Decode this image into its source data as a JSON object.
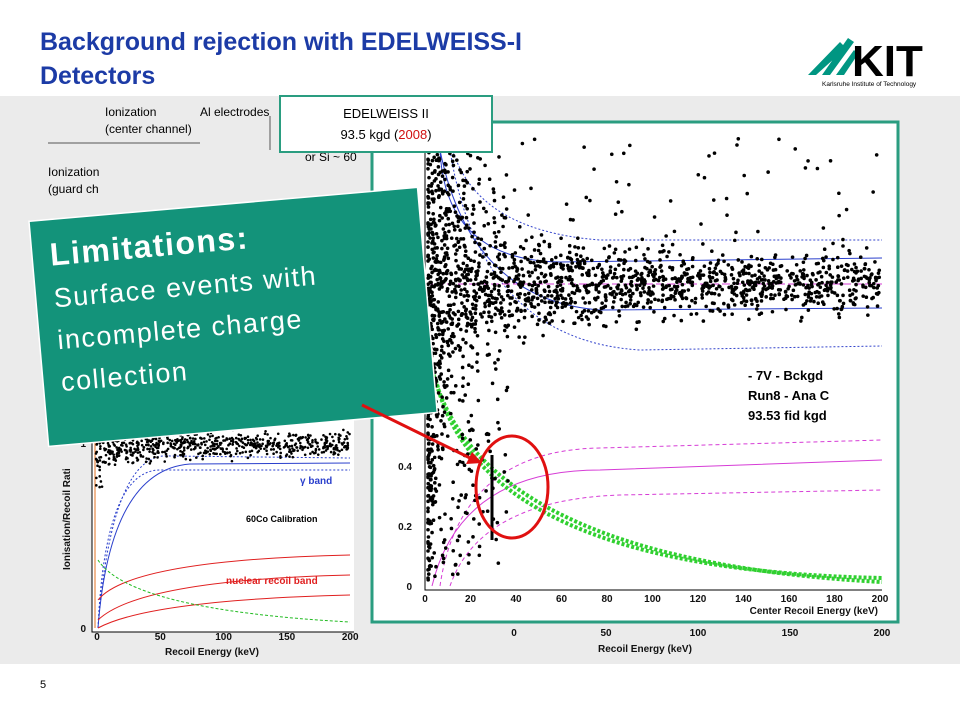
{
  "header": {
    "title_line1": "Background rejection with EDELWEISS-I",
    "title_line2": "Detectors",
    "logo": "KIT",
    "logo_subtitle": "Karlsruhe Institute of Technology"
  },
  "inset": {
    "line1": "EDELWEISS II",
    "line2_start": "93.5 kgd (",
    "year": "2008",
    "line2_end": ")"
  },
  "callout": {
    "heading": "Limitations:",
    "body_lines": [
      "Surface events with",
      "incomplete charge",
      "collection"
    ]
  },
  "left_plot": {
    "labels": [
      "Ionization",
      "(center channel)",
      "Ionization",
      "(guard ch",
      "Al electrodes",
      "or Si ~ 60"
    ],
    "y_label": "Ionisation/Recoil Rati",
    "x_label": "Recoil Energy (keV)",
    "x_ticks": [
      "0",
      "50",
      "100",
      "150",
      "200"
    ],
    "y_ticks": [
      "0",
      "1"
    ],
    "gamma_band": "γ band",
    "calibration": "60Co Calibration",
    "nuclear_band": "nuclear recoil band"
  },
  "right_plot": {
    "x_label": "Center Recoil Energy (keV)",
    "x_ticks": [
      "0",
      "20",
      "40",
      "60",
      "80",
      "100",
      "120",
      "140",
      "160",
      "180",
      "200"
    ],
    "y_ticks": [
      "0",
      "0.2",
      "0.4"
    ],
    "legend": [
      "- 7V - Bckgd",
      "Run8 - Ana C",
      "93.53 fid kgd"
    ]
  },
  "lower_axis": {
    "ticks": [
      "0",
      "50",
      "100",
      "150",
      "200"
    ],
    "label": "Recoil Energy (keV)"
  },
  "page_number": "5"
}
